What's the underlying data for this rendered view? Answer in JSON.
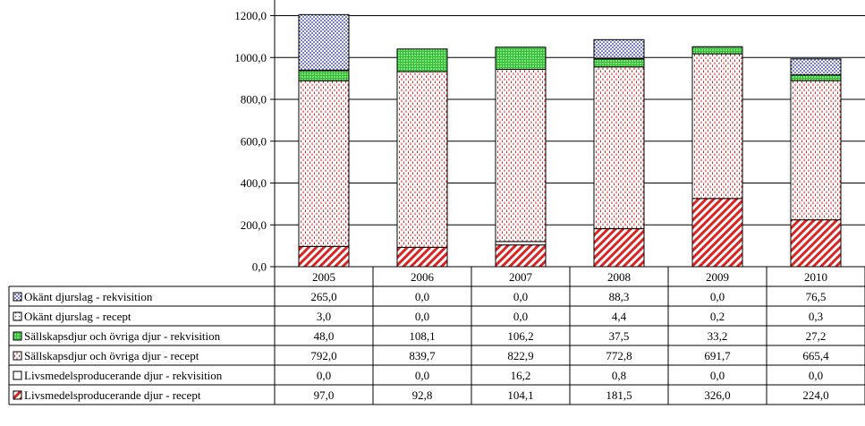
{
  "chart_data": {
    "type": "bar",
    "stacked": true,
    "categories": [
      "2005",
      "2006",
      "2007",
      "2008",
      "2009",
      "2010"
    ],
    "yticks": [
      "0,0",
      "200,0",
      "400,0",
      "600,0",
      "800,0",
      "1000,0",
      "1200,0"
    ],
    "ylim": [
      0,
      1200
    ],
    "grid": true,
    "legend": "data-table",
    "series": [
      {
        "name": "Livsmedelsproducerande djur - recept",
        "values": [
          97.0,
          92.8,
          104.1,
          181.5,
          326.0,
          224.0
        ],
        "labels": [
          "97,0",
          "92,8",
          "104,1",
          "181,5",
          "326,0",
          "224,0"
        ],
        "color": "#dd2222",
        "pattern": "diagonal"
      },
      {
        "name": "Livsmedelsproducerande djur - rekvisition",
        "values": [
          0.0,
          0.0,
          16.2,
          0.8,
          0.0,
          0.0
        ],
        "labels": [
          "0,0",
          "0,0",
          "16,2",
          "0,8",
          "0,0",
          "0,0"
        ],
        "color": "#dd2222",
        "pattern": "white"
      },
      {
        "name": "Sällskapsdjur och övriga djur - recept",
        "values": [
          792.0,
          839.7,
          822.9,
          772.8,
          691.7,
          665.4
        ],
        "labels": [
          "792,0",
          "839,7",
          "822,9",
          "772,8",
          "691,7",
          "665,4"
        ],
        "color": "#dd2222",
        "pattern": "dashes"
      },
      {
        "name": "Sällskapsdjur och övriga djur - rekvisition",
        "values": [
          48.0,
          108.1,
          106.2,
          37.5,
          33.2,
          27.2
        ],
        "labels": [
          "48,0",
          "108,1",
          "106,2",
          "37,5",
          "33,2",
          "27,2"
        ],
        "color": "#33bb33",
        "pattern": "grid"
      },
      {
        "name": "Okänt djurslag - recept",
        "values": [
          3.0,
          0.0,
          0.0,
          4.4,
          0.2,
          0.3
        ],
        "labels": [
          "3,0",
          "0,0",
          "0,0",
          "4,4",
          "0,2",
          "0,3"
        ],
        "color": "#1a2a99",
        "pattern": "dots-sparse"
      },
      {
        "name": "Okänt djurslag - rekvisition",
        "values": [
          265.0,
          0.0,
          0.0,
          88.3,
          0.0,
          76.5
        ],
        "labels": [
          "265,0",
          "0,0",
          "0,0",
          "88,3",
          "0,0",
          "76,5"
        ],
        "color": "#1a2a99",
        "pattern": "dots"
      }
    ],
    "table_row_order": [
      5,
      4,
      3,
      2,
      1,
      0
    ]
  }
}
